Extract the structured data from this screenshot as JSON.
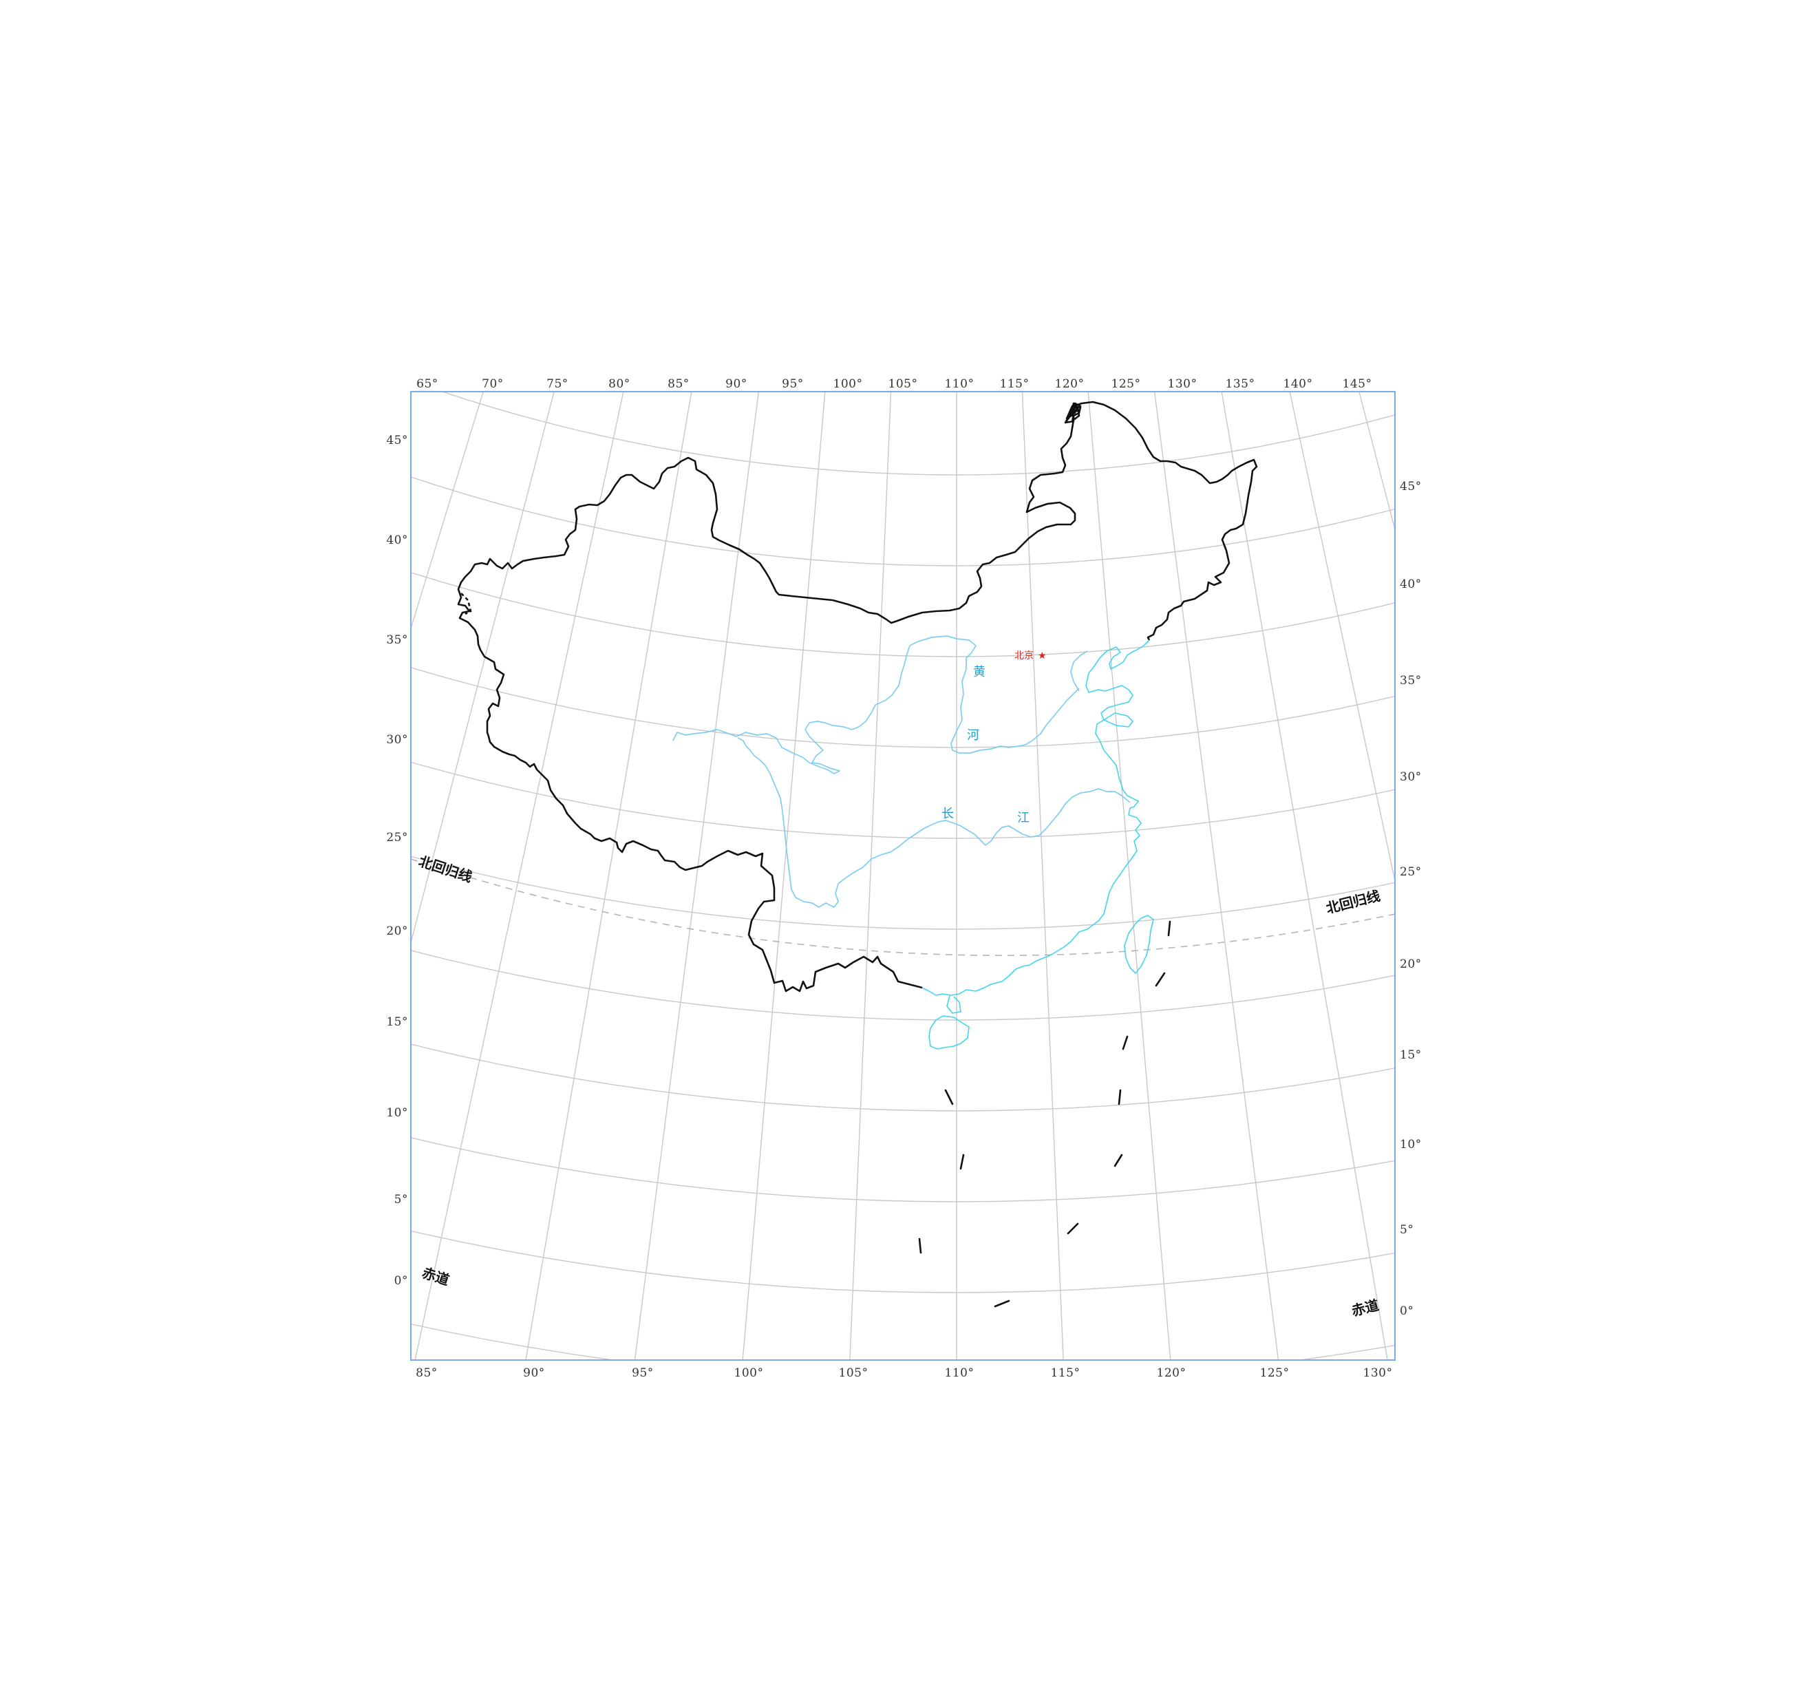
{
  "map": {
    "top_lon_labels": [
      "65°",
      "70°",
      "75°",
      "80°",
      "85°",
      "90°",
      "95°",
      "100°",
      "105°",
      "110°",
      "115°",
      "120°",
      "125°",
      "130°",
      "135°",
      "140°",
      "145°"
    ],
    "bottom_lon_labels": [
      "85°",
      "90°",
      "95°",
      "100°",
      "105°",
      "110°",
      "115°",
      "120°",
      "125°",
      "130°"
    ],
    "left_lat_labels": [
      "45°",
      "40°",
      "35°",
      "30°",
      "25°",
      "20°",
      "15°",
      "10°",
      "5°",
      "0°"
    ],
    "right_lat_labels": [
      "45°",
      "40°",
      "35°",
      "30°",
      "25°",
      "20°",
      "15°",
      "10°",
      "5°",
      "0°"
    ],
    "tropic_label": "北回归线",
    "equator_label": "赤道",
    "capital_label": "北京",
    "capital_marker": "★",
    "river_labels": {
      "huang": "黄",
      "he": "河",
      "chang": "长",
      "jiang": "江"
    },
    "colors": {
      "grid": "#c8c8c8",
      "frame": "#7aaaf0",
      "border": "#111111",
      "coast": "#3fd6ee",
      "river": "#7fcdf0",
      "capital": "#e02020"
    }
  }
}
